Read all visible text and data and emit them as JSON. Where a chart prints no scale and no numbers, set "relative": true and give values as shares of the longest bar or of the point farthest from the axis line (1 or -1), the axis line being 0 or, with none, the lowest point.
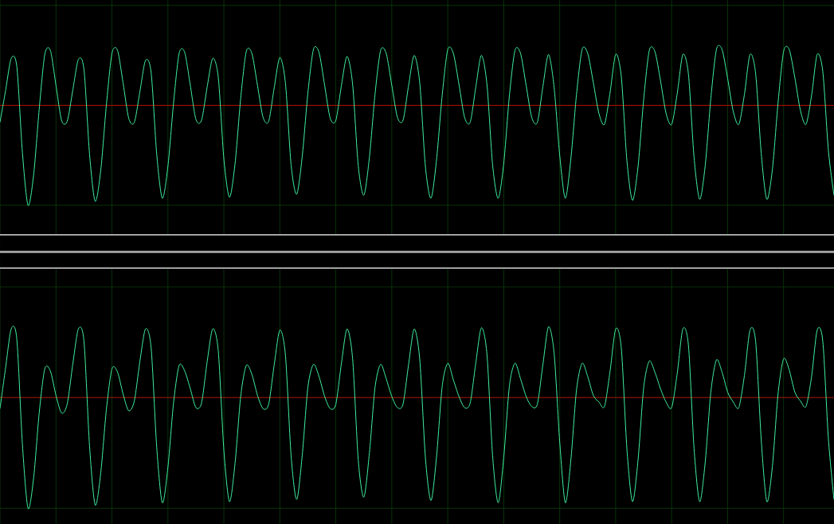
{
  "chart_data": [
    {
      "type": "line",
      "relative": true,
      "grid": true,
      "color": "#40f0a0",
      "categories": [
        null,
        null,
        null,
        null,
        null,
        null,
        null,
        null,
        null,
        null,
        null,
        null,
        null,
        null,
        null,
        null,
        null,
        null,
        null,
        null,
        null,
        null,
        null,
        null,
        null,
        null,
        null,
        null,
        null,
        null,
        null,
        null,
        null,
        null,
        null,
        null,
        null,
        null,
        null,
        null,
        null,
        null,
        null,
        null,
        null,
        null,
        null,
        null,
        null,
        null,
        null,
        null,
        null,
        null,
        null,
        null,
        null,
        null,
        null,
        null,
        null,
        null,
        null,
        null,
        null,
        null,
        null,
        null,
        null,
        null,
        null,
        null,
        null,
        null,
        null,
        null,
        null,
        null,
        null,
        null,
        null,
        null,
        null,
        null,
        null,
        null,
        null,
        null,
        null,
        null,
        null,
        null,
        null,
        null,
        null,
        null,
        null,
        null,
        null,
        null,
        null,
        null,
        null,
        null,
        null,
        null,
        null,
        null,
        null,
        null,
        null,
        null,
        null,
        null,
        null,
        null,
        null,
        null,
        null,
        null,
        null,
        null,
        null,
        null,
        null,
        null,
        null,
        null,
        null,
        null,
        null,
        null,
        null,
        null,
        null,
        null,
        null,
        null,
        null,
        null,
        null,
        null,
        null,
        null,
        null,
        null,
        null,
        null,
        null,
        null
      ],
      "values": [
        -0.17,
        0.15,
        0.47,
        0.39,
        -0.47,
        -1,
        -0.7,
        -0.04,
        0.51,
        0.55,
        0.2,
        -0.15,
        -0.16,
        0.15,
        0.46,
        0.36,
        -0.49,
        -0.96,
        -0.65,
        0.0,
        0.52,
        0.55,
        0.22,
        -0.13,
        -0.17,
        0.14,
        0.45,
        0.33,
        -0.49,
        -0.93,
        -0.61,
        0.02,
        0.52,
        0.53,
        0.2,
        -0.14,
        -0.15,
        0.18,
        0.47,
        0.28,
        -0.54,
        -0.92,
        -0.58,
        0.07,
        0.54,
        0.52,
        0.2,
        -0.12,
        -0.16,
        0.18,
        0.48,
        0.22,
        -0.59,
        -0.89,
        -0.51,
        0.12,
        0.56,
        0.53,
        0.2,
        -0.13,
        -0.15,
        0.2,
        0.49,
        0.21,
        -0.6,
        -0.9,
        -0.52,
        0.11,
        0.55,
        0.52,
        0.2,
        -0.12,
        -0.15,
        0.2,
        0.5,
        0.22,
        -0.61,
        -0.93,
        -0.54,
        0.1,
        0.56,
        0.52,
        0.21,
        -0.12,
        -0.17,
        0.18,
        0.5,
        0.21,
        -0.59,
        -0.93,
        -0.58,
        0.09,
        0.55,
        0.52,
        0.2,
        -0.12,
        -0.17,
        0.19,
        0.51,
        0.18,
        -0.5,
        -0.93,
        -0.53,
        0.11,
        0.56,
        0.52,
        0.23,
        -0.08,
        -0.19,
        0.13,
        0.51,
        0.29,
        -0.55,
        -0.95,
        -0.61,
        0.06,
        0.55,
        0.54,
        0.25,
        -0.08,
        -0.19,
        0.12,
        0.51,
        0.31,
        -0.52,
        -0.94,
        -0.6,
        0.07,
        0.56,
        0.56,
        0.27,
        -0.06,
        -0.19,
        0.11,
        0.51,
        0.32,
        -0.48,
        -0.94,
        -0.64,
        0.02,
        0.54,
        0.56,
        0.28,
        -0.05,
        -0.19,
        0.1,
        0.51,
        0.34,
        -0.45,
        -0.9
      ],
      "ref_lines": [
        {
          "axis": "y",
          "value": 0,
          "color": "#d40000"
        }
      ]
    },
    {
      "type": "line",
      "relative": true,
      "grid": true,
      "color": "#40f0a0",
      "categories": [
        null,
        null,
        null,
        null,
        null,
        null,
        null,
        null,
        null,
        null,
        null,
        null,
        null,
        null,
        null,
        null,
        null,
        null,
        null,
        null,
        null,
        null,
        null,
        null,
        null,
        null,
        null,
        null,
        null,
        null,
        null,
        null,
        null,
        null,
        null,
        null,
        null,
        null,
        null,
        null,
        null,
        null,
        null,
        null,
        null,
        null,
        null,
        null,
        null,
        null,
        null,
        null,
        null,
        null,
        null,
        null,
        null,
        null,
        null,
        null,
        null,
        null,
        null,
        null,
        null,
        null,
        null,
        null,
        null,
        null,
        null,
        null,
        null,
        null,
        null,
        null,
        null,
        null,
        null,
        null,
        null,
        null,
        null,
        null,
        null,
        null,
        null,
        null,
        null,
        null,
        null,
        null,
        null,
        null,
        null,
        null,
        null,
        null,
        null,
        null,
        null,
        null,
        null,
        null,
        null,
        null,
        null,
        null,
        null,
        null,
        null,
        null,
        null,
        null,
        null,
        null,
        null,
        null,
        null,
        null,
        null,
        null,
        null,
        null,
        null,
        null,
        null,
        null,
        null,
        null,
        null,
        null,
        null,
        null,
        null,
        null,
        null,
        null,
        null,
        null,
        null,
        null,
        null,
        null,
        null,
        null,
        null,
        null,
        null,
        null
      ],
      "values": [
        -0.1,
        0.27,
        0.62,
        0.53,
        -0.42,
        -1,
        -0.73,
        -0.14,
        0.26,
        0.24,
        0.02,
        -0.14,
        -0.06,
        0.3,
        0.62,
        0.51,
        -0.44,
        -0.97,
        -0.68,
        -0.11,
        0.26,
        0.23,
        0.03,
        -0.12,
        -0.03,
        0.33,
        0.62,
        0.45,
        -0.45,
        -0.95,
        -0.63,
        -0.05,
        0.29,
        0.24,
        0.08,
        -0.09,
        -0.05,
        0.32,
        0.62,
        0.42,
        -0.48,
        -0.94,
        -0.59,
        0.01,
        0.29,
        0.21,
        0.02,
        -0.1,
        -0.06,
        0.3,
        0.61,
        0.38,
        -0.52,
        -0.92,
        -0.52,
        0.09,
        0.3,
        0.19,
        0.01,
        -0.1,
        -0.06,
        0.31,
        0.62,
        0.35,
        -0.56,
        -0.9,
        -0.5,
        0.09,
        0.3,
        0.17,
        0.01,
        -0.09,
        -0.06,
        0.3,
        0.62,
        0.34,
        -0.54,
        -0.93,
        -0.53,
        0.1,
        0.31,
        0.16,
        0.01,
        -0.09,
        -0.05,
        0.31,
        0.63,
        0.39,
        -0.52,
        -0.95,
        -0.54,
        0.1,
        0.31,
        0.17,
        0.01,
        -0.08,
        -0.06,
        0.3,
        0.64,
        0.4,
        -0.4,
        -0.95,
        -0.56,
        0.07,
        0.31,
        0.19,
        0.02,
        -0.04,
        -0.08,
        0.24,
        0.62,
        0.45,
        -0.46,
        -0.94,
        -0.56,
        0.09,
        0.33,
        0.23,
        0.08,
        -0.04,
        -0.09,
        0.22,
        0.62,
        0.47,
        -0.46,
        -0.94,
        -0.58,
        0.05,
        0.34,
        0.23,
        0.05,
        -0.04,
        -0.09,
        0.2,
        0.61,
        0.51,
        -0.38,
        -0.94,
        -0.62,
        0.03,
        0.35,
        0.25,
        0.05,
        -0.03,
        -0.08,
        0.19,
        0.61,
        0.51,
        -0.37,
        -0.92
      ],
      "ref_lines": [
        {
          "axis": "y",
          "value": 0,
          "color": "#d40000"
        }
      ]
    }
  ]
}
